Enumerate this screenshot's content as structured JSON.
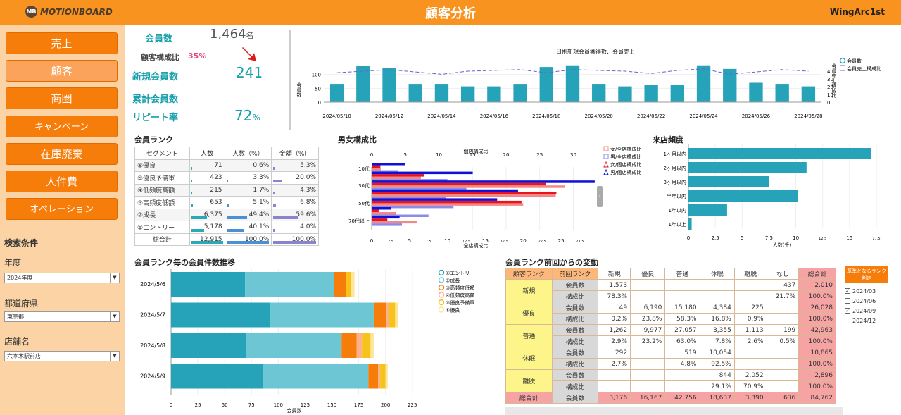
{
  "header": {
    "logo": "MOTIONBOARD",
    "logo_mark": "MB",
    "title": "顧客分析",
    "brand": "WingArc1st"
  },
  "nav": [
    "売上",
    "顧客",
    "商圏",
    "キャンペーン",
    "在庫廃棄",
    "人件費",
    "オペレーション"
  ],
  "nav_selected": 1,
  "search": {
    "heading": "検索条件",
    "fields": [
      {
        "label": "年度",
        "value": "2024年度"
      },
      {
        "label": "都道府県",
        "value": "東京都"
      },
      {
        "label": "店舗名",
        "value": "六本木駅前店"
      }
    ]
  },
  "kpi": {
    "members_label": "会員数",
    "members_value": "1,464",
    "members_unit": "名",
    "ratio_label": "顧客構成比",
    "ratio_value": "35%",
    "new_label": "新規会員数",
    "new_value": "241",
    "cum_label": "累計会員数",
    "repeat_label": "リピート率",
    "repeat_value": "72",
    "repeat_unit": "%"
  },
  "colors": {
    "accent": "#f7931e",
    "nav": "#f77d0b",
    "teal": "#1aa0ac",
    "bar": "#26a3b8",
    "line": "#6666cc"
  },
  "chart_daily": {
    "type": "bar",
    "title": "日別新規会員獲得数、会員売上",
    "ylabel": "会員数",
    "y2label": "会員売上構成比",
    "legend": [
      "会員数",
      "会員売上構成比"
    ],
    "x_ticks": [
      "2024/05/10",
      "2024/05/12",
      "2024/05/14",
      "2024/05/16",
      "2024/05/18",
      "2024/05/20",
      "2024/05/22",
      "2024/05/24",
      "2024/05/26",
      "2024/05/28"
    ],
    "y_ticks": [
      "0",
      "50",
      "100"
    ],
    "y2_ticks": [
      "0",
      "10",
      "20",
      "30",
      "40"
    ],
    "values": [
      66,
      131,
      123,
      66,
      66,
      57,
      57,
      66,
      127,
      133,
      66,
      57,
      62,
      62,
      133,
      120,
      70,
      66,
      57
    ],
    "line": [
      38,
      40,
      42,
      39,
      36,
      40,
      41,
      42,
      38,
      42,
      41,
      40,
      37,
      41,
      43,
      36,
      39,
      42,
      40
    ]
  },
  "rank_table": {
    "title": "会員ランク",
    "headers": [
      "セグメント",
      "人数",
      "人数（%）",
      "金額（%）"
    ],
    "rows": [
      [
        "⑥優良",
        "71",
        "0.6%",
        "5.3%"
      ],
      [
        "⑤優良予備軍",
        "423",
        "3.3%",
        "20.0%"
      ],
      [
        "④低頻度高額",
        "215",
        "1.7%",
        "4.3%"
      ],
      [
        "③高頻度低額",
        "653",
        "5.1%",
        "6.8%"
      ],
      [
        "②成長",
        "6,375",
        "49.4%",
        "59.6%"
      ],
      [
        "①エントリー",
        "5,178",
        "40.1%",
        "4.0%"
      ],
      [
        "総合計",
        "12,915",
        "100.0%",
        "100.0%"
      ]
    ],
    "pct_people": [
      0.6,
      3.3,
      1.7,
      5.1,
      49.4,
      40.1,
      100
    ],
    "pct_amount": [
      5.3,
      20.0,
      4.3,
      6.8,
      59.6,
      4.0,
      100
    ]
  },
  "gender": {
    "type": "bar",
    "title": "男女構成比",
    "top_label": "個店構成比",
    "bottom_label": "全店構成比",
    "top_ticks": [
      "0",
      "5",
      "10",
      "15",
      "20",
      "25",
      "30"
    ],
    "bottom_ticks": [
      "0",
      "2.5",
      "5",
      "7.5",
      "10",
      "12.5",
      "15",
      "17.5",
      "20",
      "22.5",
      "25",
      "27.5"
    ],
    "y_ticks": [
      "10代",
      "30代",
      "50代",
      "70代以上"
    ],
    "legend": [
      "女/全店構成比",
      "男/全店構成比",
      "女/個店構成比",
      "男/個店構成比"
    ],
    "rows": [
      [
        1.2,
        3.5,
        0.5,
        1.9
      ],
      [
        6.5,
        10,
        3,
        5.8
      ],
      [
        25.5,
        12.5,
        10,
        12.8
      ],
      [
        24.3,
        9.8,
        10.6,
        8.4
      ],
      [
        20,
        10.8,
        8.6,
        7.2
      ],
      [
        3.2,
        7.5,
        0.4,
        1.1
      ],
      [
        6,
        4,
        0.9,
        1.6
      ]
    ]
  },
  "visit": {
    "type": "bar",
    "title": "来店頻度",
    "xlabel": "人数(千)",
    "categories": [
      "1ヶ月以内",
      "2ヶ月以内",
      "3ヶ月以内",
      "半年以内",
      "1年以内",
      "1年以上"
    ],
    "values": [
      17,
      11,
      7.5,
      10.2,
      3.6,
      0.3
    ],
    "x_ticks": [
      "0",
      "2.5",
      "5",
      "7.5",
      "10",
      "12.5",
      "15",
      "17.5"
    ]
  },
  "trend": {
    "type": "bar",
    "title": "会員ランク毎の会員件数推移",
    "xlabel": "会員数",
    "categories": [
      "2024/5/6",
      "2024/5/7",
      "2024/5/8",
      "2024/5/9"
    ],
    "x_ticks": [
      "0",
      "25",
      "50",
      "75",
      "100",
      "125",
      "150",
      "175",
      "200",
      "225"
    ],
    "legend": [
      "①エントリー",
      "②成長",
      "③高頻度低額",
      "④低頻度高額",
      "⑤優良予備軍",
      "⑥優良"
    ],
    "series": [
      [
        69,
        92,
        70,
        86
      ],
      [
        83,
        97,
        89,
        98
      ],
      [
        11,
        12,
        14,
        9
      ],
      [
        0,
        2,
        5,
        2
      ],
      [
        5,
        6,
        8,
        5
      ],
      [
        3,
        3,
        3,
        2
      ]
    ]
  },
  "movement": {
    "title": "会員ランク前回からの変動",
    "corner": [
      "顧客ランク",
      "前回ランク"
    ],
    "cols": [
      "新規",
      "優良",
      "普通",
      "休眠",
      "離脱",
      "なし",
      "総合計"
    ],
    "rows": [
      {
        "rank": "新規",
        "cells": [
          [
            "会員数",
            "1,573",
            "",
            "",
            "",
            "",
            "437",
            "2,010"
          ],
          [
            "構成比",
            "78.3%",
            "",
            "",
            "",
            "",
            "21.7%",
            "100.0%"
          ]
        ]
      },
      {
        "rank": "優良",
        "cells": [
          [
            "会員数",
            "49",
            "6,190",
            "15,180",
            "4,384",
            "225",
            "",
            "26,028"
          ],
          [
            "構成比",
            "0.2%",
            "23.8%",
            "58.3%",
            "16.8%",
            "0.9%",
            "",
            "100.0%"
          ]
        ]
      },
      {
        "rank": "普通",
        "cells": [
          [
            "会員数",
            "1,262",
            "9,977",
            "27,057",
            "3,355",
            "1,113",
            "199",
            "42,963"
          ],
          [
            "構成比",
            "2.9%",
            "23.2%",
            "63.0%",
            "7.8%",
            "2.6%",
            "0.5%",
            "100.0%"
          ]
        ]
      },
      {
        "rank": "休眠",
        "cells": [
          [
            "会員数",
            "292",
            "",
            "519",
            "10,054",
            "",
            "",
            "10,865"
          ],
          [
            "構成比",
            "2.7%",
            "",
            "4.8%",
            "92.5%",
            "",
            "",
            "100.0%"
          ]
        ]
      },
      {
        "rank": "離脱",
        "cells": [
          [
            "会員数",
            "",
            "",
            "",
            "844",
            "2,052",
            "",
            "2,896"
          ],
          [
            "構成比",
            "",
            "",
            "",
            "29.1%",
            "70.9%",
            "",
            "100.0%"
          ]
        ]
      },
      {
        "rank": "総合計",
        "cells": [
          [
            "会員数",
            "3,176",
            "16,167",
            "42,756",
            "18,637",
            "3,390",
            "636",
            "84,762"
          ]
        ]
      }
    ]
  },
  "checklist": {
    "title": "基準となるランク判定",
    "items": [
      {
        "label": "2024/03",
        "checked": true
      },
      {
        "label": "2024/06",
        "checked": false
      },
      {
        "label": "2024/09",
        "checked": true
      },
      {
        "label": "2024/12",
        "checked": false
      }
    ]
  }
}
